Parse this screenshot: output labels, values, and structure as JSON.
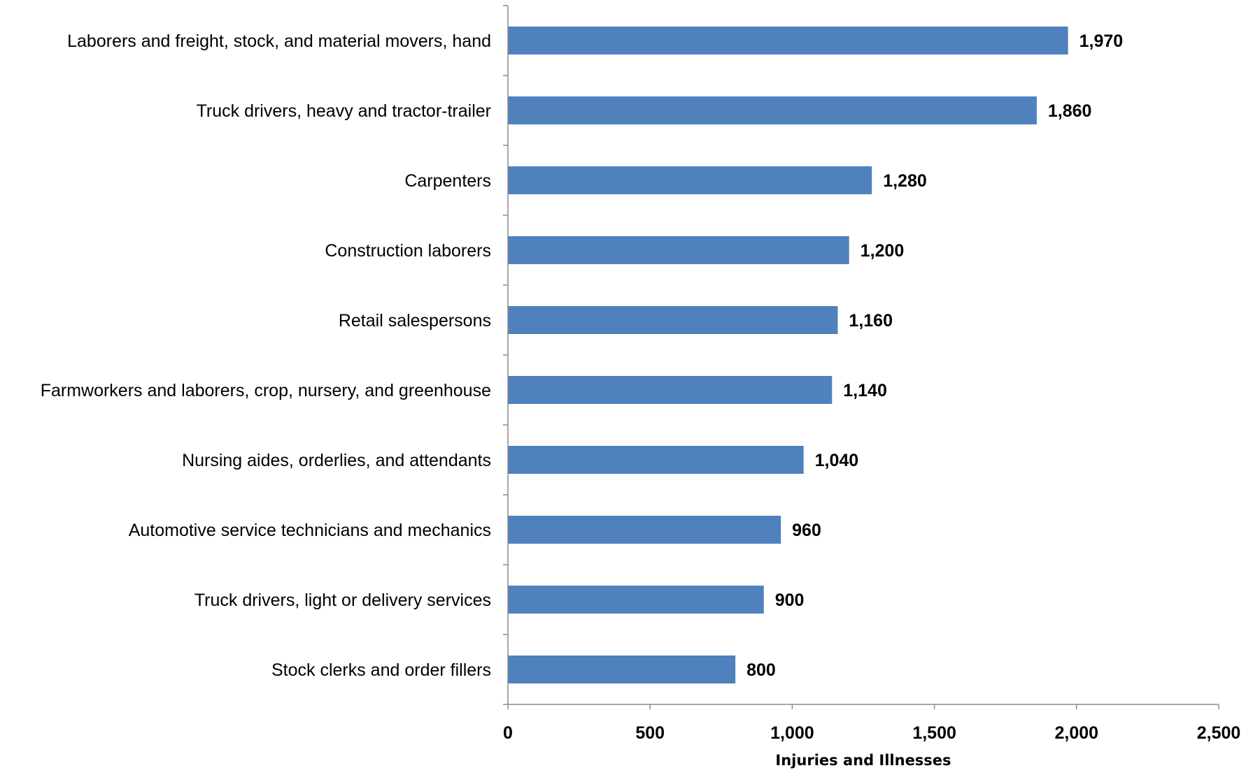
{
  "chart_data": {
    "type": "bar",
    "orientation": "horizontal",
    "categories": [
      "Laborers and freight, stock, and material movers, hand",
      "Truck drivers, heavy and tractor-trailer",
      "Carpenters",
      "Construction laborers",
      "Retail salespersons",
      "Farmworkers and laborers, crop, nursery, and greenhouse",
      "Nursing aides, orderlies, and attendants",
      "Automotive service technicians and mechanics",
      "Truck drivers, light or delivery services",
      "Stock clerks and order fillers"
    ],
    "values": [
      1970,
      1860,
      1280,
      1200,
      1160,
      1140,
      1040,
      960,
      900,
      800
    ],
    "value_labels": [
      "1,970",
      "1,860",
      "1,280",
      "1,200",
      "1,160",
      "1,140",
      "1,040",
      "960",
      "900",
      "800"
    ],
    "xlabel": "Injuries and Illnesses",
    "xlim": [
      0,
      2500
    ],
    "xticks": [
      0,
      500,
      1000,
      1500,
      2000,
      2500
    ],
    "xtick_labels": [
      "0",
      "500",
      "1,000",
      "1,500",
      "2,000",
      "2,500"
    ],
    "grid": false,
    "legend": "none",
    "colors": {
      "bar": "#4f81bd",
      "axis": "#8c8c8c",
      "text": "#000000"
    }
  }
}
